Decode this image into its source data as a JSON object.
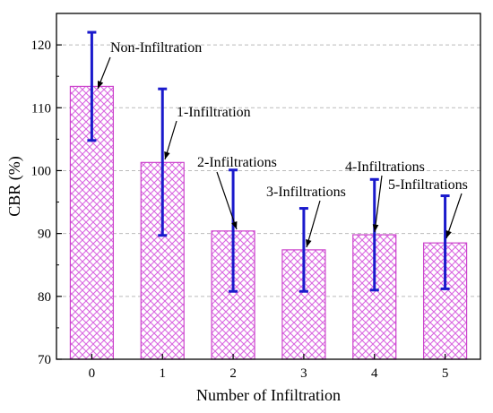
{
  "chart_data": {
    "type": "bar",
    "xlabel": "Number of Infiltration",
    "ylabel": "CBR (%)",
    "ylim": [
      70,
      125
    ],
    "yticks": [
      70,
      80,
      90,
      100,
      110,
      120
    ],
    "categories": [
      "0",
      "1",
      "2",
      "3",
      "4",
      "5"
    ],
    "values": [
      113.4,
      101.3,
      90.4,
      87.4,
      89.8,
      88.5
    ],
    "error_upper": [
      122.0,
      113.0,
      100.1,
      94.0,
      98.6,
      96.0
    ],
    "error_lower": [
      104.8,
      89.7,
      80.8,
      80.8,
      81.0,
      81.2
    ],
    "annotations": [
      "Non-Infiltration",
      "1-Infiltration",
      "2-Infiltrations",
      "3-Infiltrations",
      "4-Infiltrations",
      "5-Infiltrations"
    ],
    "grid": "horizontal dashed",
    "bar_fill": "magenta crosshatch",
    "colors": {
      "bar_hatch": "#d966e0",
      "bar_edge": "#cc44cc",
      "error_bar": "#1a1acc",
      "grid": "#bbbbbb"
    }
  }
}
